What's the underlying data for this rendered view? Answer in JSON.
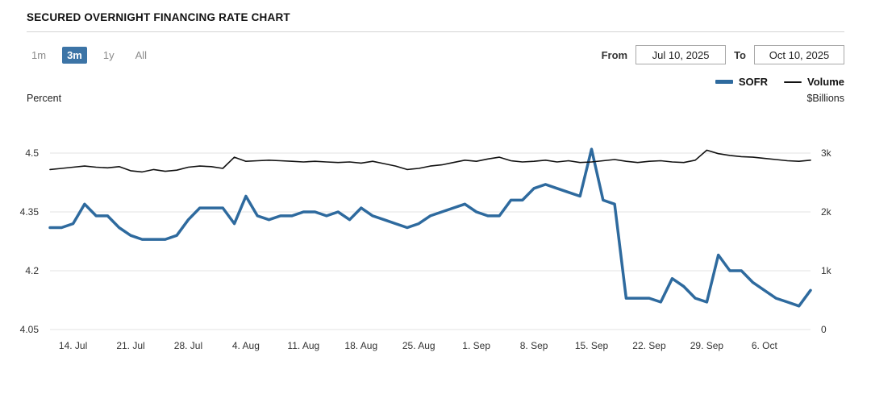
{
  "header": {
    "title": "SECURED OVERNIGHT FINANCING RATE CHART"
  },
  "controls": {
    "ranges": [
      {
        "label": "1m",
        "selected": false
      },
      {
        "label": "3m",
        "selected": true
      },
      {
        "label": "1y",
        "selected": false
      },
      {
        "label": "All",
        "selected": false
      }
    ],
    "from_label": "From",
    "from_value": "Jul 10, 2025",
    "to_label": "To",
    "to_value": "Oct 10, 2025"
  },
  "legend": [
    {
      "label": "SOFR",
      "color": "#2e6a9e",
      "thickness": 5
    },
    {
      "label": "Volume",
      "color": "#111111",
      "thickness": 2
    }
  ],
  "axes": {
    "left_caption": "Percent",
    "right_caption": "$Billions"
  },
  "chart_data": {
    "type": "line",
    "title": "Secured Overnight Financing Rate Chart",
    "x": [
      "Jul 10",
      "Jul 11",
      "Jul 14",
      "Jul 15",
      "Jul 16",
      "Jul 17",
      "Jul 18",
      "Jul 21",
      "Jul 22",
      "Jul 23",
      "Jul 24",
      "Jul 25",
      "Jul 28",
      "Jul 29",
      "Jul 30",
      "Jul 31",
      "Aug 1",
      "Aug 4",
      "Aug 5",
      "Aug 6",
      "Aug 7",
      "Aug 8",
      "Aug 11",
      "Aug 12",
      "Aug 13",
      "Aug 14",
      "Aug 15",
      "Aug 18",
      "Aug 19",
      "Aug 20",
      "Aug 21",
      "Aug 22",
      "Aug 25",
      "Aug 26",
      "Aug 27",
      "Aug 28",
      "Aug 29",
      "Sep 1",
      "Sep 2",
      "Sep 3",
      "Sep 4",
      "Sep 5",
      "Sep 8",
      "Sep 9",
      "Sep 10",
      "Sep 11",
      "Sep 12",
      "Sep 15",
      "Sep 16",
      "Sep 17",
      "Sep 18",
      "Sep 19",
      "Sep 22",
      "Sep 23",
      "Sep 24",
      "Sep 25",
      "Sep 26",
      "Sep 29",
      "Sep 30",
      "Oct 1",
      "Oct 2",
      "Oct 3",
      "Oct 6",
      "Oct 7",
      "Oct 8",
      "Oct 9",
      "Oct 10"
    ],
    "x_tick_labels": [
      "14. Jul",
      "21. Jul",
      "28. Jul",
      "4. Aug",
      "11. Aug",
      "18. Aug",
      "25. Aug",
      "1. Sep",
      "8. Sep",
      "15. Sep",
      "22. Sep",
      "29. Sep",
      "6. Oct"
    ],
    "x_tick_indices": [
      2,
      7,
      12,
      17,
      22,
      27,
      32,
      37,
      42,
      47,
      52,
      57,
      62
    ],
    "y_left": {
      "label": "Percent",
      "ticks": [
        4.05,
        4.2,
        4.35,
        4.5
      ],
      "min": 4.05,
      "max": 4.5
    },
    "y_right": {
      "label": "$Billions",
      "ticks": [
        0,
        1000,
        2000,
        3000
      ],
      "tick_labels": [
        "0",
        "1k",
        "2k",
        "3k"
      ],
      "min": 0,
      "max": 3000
    },
    "grid": true,
    "legend_position": "top-right",
    "series": [
      {
        "name": "SOFR",
        "axis": "left",
        "color": "#2e6a9e",
        "width": 3.5,
        "values": [
          4.31,
          4.31,
          4.32,
          4.37,
          4.34,
          4.34,
          4.31,
          4.29,
          4.28,
          4.28,
          4.28,
          4.29,
          4.33,
          4.36,
          4.36,
          4.36,
          4.32,
          4.39,
          4.34,
          4.33,
          4.34,
          4.34,
          4.35,
          4.35,
          4.34,
          4.35,
          4.33,
          4.36,
          4.34,
          4.33,
          4.32,
          4.31,
          4.32,
          4.34,
          4.35,
          4.36,
          4.37,
          4.35,
          4.34,
          4.34,
          4.38,
          4.38,
          4.41,
          4.42,
          4.41,
          4.4,
          4.39,
          4.51,
          4.38,
          4.37,
          4.13,
          4.13,
          4.13,
          4.12,
          4.18,
          4.16,
          4.13,
          4.12,
          4.24,
          4.2,
          4.2,
          4.17,
          4.15,
          4.13,
          4.12,
          4.11,
          4.15
        ]
      },
      {
        "name": "Volume",
        "axis": "right",
        "color": "#111111",
        "width": 1.6,
        "values": [
          2720,
          2740,
          2760,
          2780,
          2760,
          2750,
          2770,
          2700,
          2680,
          2720,
          2690,
          2710,
          2760,
          2780,
          2770,
          2740,
          2930,
          2860,
          2870,
          2880,
          2870,
          2860,
          2850,
          2860,
          2850,
          2840,
          2850,
          2830,
          2860,
          2820,
          2780,
          2720,
          2740,
          2780,
          2800,
          2840,
          2880,
          2860,
          2900,
          2930,
          2870,
          2850,
          2860,
          2880,
          2850,
          2870,
          2840,
          2850,
          2870,
          2890,
          2860,
          2840,
          2860,
          2870,
          2850,
          2840,
          2880,
          3050,
          2990,
          2960,
          2940,
          2930,
          2910,
          2890,
          2870,
          2860,
          2880
        ]
      }
    ]
  }
}
